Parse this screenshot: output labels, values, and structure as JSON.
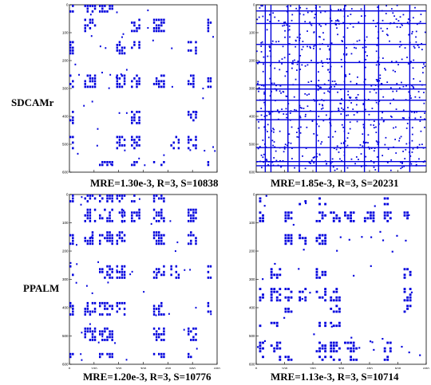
{
  "figure": {
    "row_labels": [
      "SDCAMr",
      "PPALM"
    ],
    "captions": [
      "MRE=1.30e-3, R=3, S=10838",
      "MRE=1.85e-3, R=3, S=20231",
      "MRE=1.20e-3, R=3, S=10776",
      "MRE=1.13e-3, R=3, S=10714"
    ]
  },
  "colors": {
    "marker": "#0000dd",
    "axis": "#000000",
    "background": "#ffffff"
  },
  "chart_data": [
    {
      "type": "scatter",
      "row_label": "SDCAMr",
      "caption": "MRE=1.30e-3, R=3, S=10838",
      "style": "block-structured sparsity pattern",
      "xlim": [
        0,
        600
      ],
      "ylim": [
        0,
        600
      ],
      "y_inverted": true,
      "xticks": [
        0,
        100,
        200,
        300,
        400,
        500,
        600
      ],
      "yticks": [
        0,
        100,
        200,
        300,
        400,
        500,
        600
      ],
      "row_groups": [
        [
          0,
          30
        ],
        [
          50,
          95
        ],
        [
          130,
          180
        ],
        [
          250,
          300
        ],
        [
          380,
          430
        ],
        [
          470,
          520
        ],
        [
          560,
          580
        ]
      ],
      "col_groups": [
        [
          0,
          20
        ],
        [
          60,
          110
        ],
        [
          120,
          180
        ],
        [
          190,
          230
        ],
        [
          250,
          290
        ],
        [
          340,
          390
        ],
        [
          410,
          450
        ],
        [
          480,
          520
        ],
        [
          560,
          580
        ]
      ],
      "nonzeros": 10838
    },
    {
      "type": "scatter",
      "row_label": "SDCAMr",
      "caption": "MRE=1.85e-3, R=3, S=20231",
      "style": "dense sparsity pattern with banding",
      "xlim": [
        0,
        600
      ],
      "ylim": [
        0,
        600
      ],
      "y_inverted": true,
      "xticks": [
        0,
        100,
        200,
        300,
        400,
        500,
        600
      ],
      "yticks": [
        0,
        100,
        200,
        300,
        400,
        500,
        600
      ],
      "dense_rows": [
        20,
        65,
        140,
        205,
        285,
        300,
        340,
        380,
        410,
        510,
        560,
        575
      ],
      "dense_cols": [
        30,
        50,
        110,
        150,
        210,
        260,
        310,
        380,
        430,
        540
      ],
      "nonzeros": 20231
    },
    {
      "type": "scatter",
      "row_label": "PPALM",
      "caption": "MRE=1.20e-3, R=3, S=10776",
      "style": "block-structured sparsity pattern",
      "xlim": [
        0,
        600
      ],
      "ylim": [
        0,
        600
      ],
      "y_inverted": true,
      "xticks": [
        0,
        100,
        200,
        300,
        400,
        500,
        600
      ],
      "yticks": [
        0,
        100,
        200,
        300,
        400,
        500,
        600
      ],
      "row_groups": [
        [
          0,
          30
        ],
        [
          50,
          95
        ],
        [
          130,
          180
        ],
        [
          250,
          300
        ],
        [
          380,
          430
        ],
        [
          470,
          520
        ],
        [
          560,
          580
        ]
      ],
      "col_groups": [
        [
          0,
          20
        ],
        [
          60,
          110
        ],
        [
          120,
          180
        ],
        [
          190,
          230
        ],
        [
          250,
          290
        ],
        [
          340,
          390
        ],
        [
          410,
          450
        ],
        [
          480,
          520
        ],
        [
          560,
          580
        ]
      ],
      "nonzeros": 10776
    },
    {
      "type": "scatter",
      "row_label": "PPALM",
      "caption": "MRE=1.13e-3, R=3, S=10714",
      "style": "block-structured sparsity pattern",
      "xlim": [
        0,
        600
      ],
      "ylim": [
        0,
        600
      ],
      "y_inverted": true,
      "xticks": [
        0,
        100,
        200,
        300,
        400,
        500,
        600
      ],
      "yticks": [
        0,
        100,
        200,
        300,
        400,
        500,
        600
      ],
      "row_groups": [
        [
          10,
          40
        ],
        [
          60,
          100
        ],
        [
          140,
          180
        ],
        [
          260,
          300
        ],
        [
          330,
          380
        ],
        [
          390,
          420
        ],
        [
          450,
          470
        ],
        [
          520,
          560
        ],
        [
          570,
          590
        ]
      ],
      "col_groups": [
        [
          10,
          30
        ],
        [
          50,
          90
        ],
        [
          100,
          130
        ],
        [
          150,
          180
        ],
        [
          210,
          250
        ],
        [
          260,
          300
        ],
        [
          310,
          360
        ],
        [
          380,
          420
        ],
        [
          450,
          480
        ],
        [
          520,
          550
        ]
      ],
      "nonzeros": 10714
    }
  ]
}
